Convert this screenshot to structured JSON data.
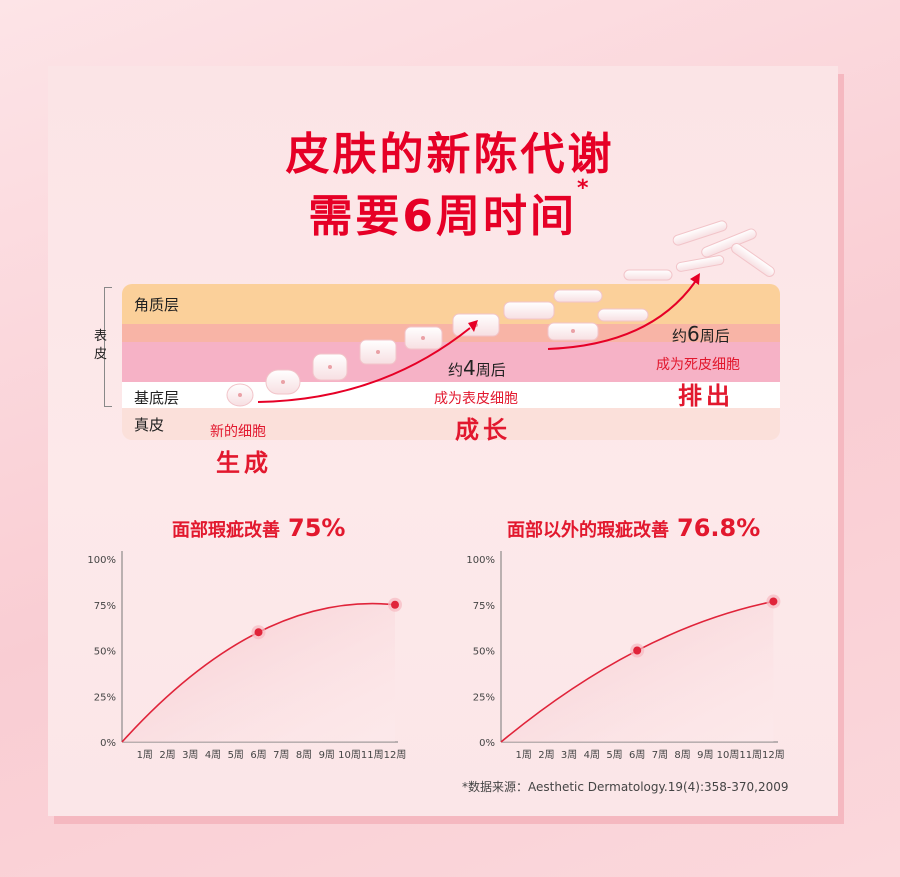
{
  "title_line1": "皮肤的新陈代谢",
  "title_line2": "需要6周时间",
  "title_mark": "*",
  "diagram": {
    "layers": {
      "stratum_corneum": "角质层",
      "basal": "基底层",
      "dermis": "真皮"
    },
    "epidermis": [
      "表",
      "皮"
    ],
    "stages": {
      "new_cell": "新的细胞",
      "generate": "生成",
      "weeks4_prefix": "约",
      "weeks4_num": "4",
      "weeks4_suffix": "周后",
      "becomes_epidermis": "成为表皮细胞",
      "grow": "成长",
      "weeks6_prefix": "约",
      "weeks6_num": "6",
      "weeks6_suffix": "周后",
      "becomes_dead": "成为死皮细胞",
      "shed": "排出"
    },
    "colors": {
      "accent": "#e60026",
      "corneum": "#fbd09a",
      "mid": "#f7a8bc",
      "dermis": "#fbe1dc"
    }
  },
  "chart_data": [
    {
      "type": "area",
      "title": "面部瑕疵改善",
      "value_label": "75%",
      "categories": [
        "1周",
        "2周",
        "3周",
        "4周",
        "5周",
        "6周",
        "7周",
        "8周",
        "9周",
        "10周",
        "11周",
        "12周"
      ],
      "yticks": [
        "0%",
        "25%",
        "50%",
        "75%",
        "100%"
      ],
      "ylim": [
        0,
        100
      ],
      "x": [
        0,
        6,
        12
      ],
      "values": [
        0,
        60,
        75
      ],
      "marked_points": [
        6,
        12
      ]
    },
    {
      "type": "area",
      "title": "面部以外的瑕疵改善",
      "value_label": "76.8%",
      "categories": [
        "1周",
        "2周",
        "3周",
        "4周",
        "5周",
        "6周",
        "7周",
        "8周",
        "9周",
        "10周",
        "11周",
        "12周"
      ],
      "yticks": [
        "0%",
        "25%",
        "50%",
        "75%",
        "100%"
      ],
      "ylim": [
        0,
        100
      ],
      "x": [
        0,
        6,
        12
      ],
      "values": [
        0,
        50,
        76.8
      ],
      "marked_points": [
        6,
        12
      ]
    }
  ],
  "source": "*数据来源：Aesthetic Dermatology.19(4):358-370,2009"
}
